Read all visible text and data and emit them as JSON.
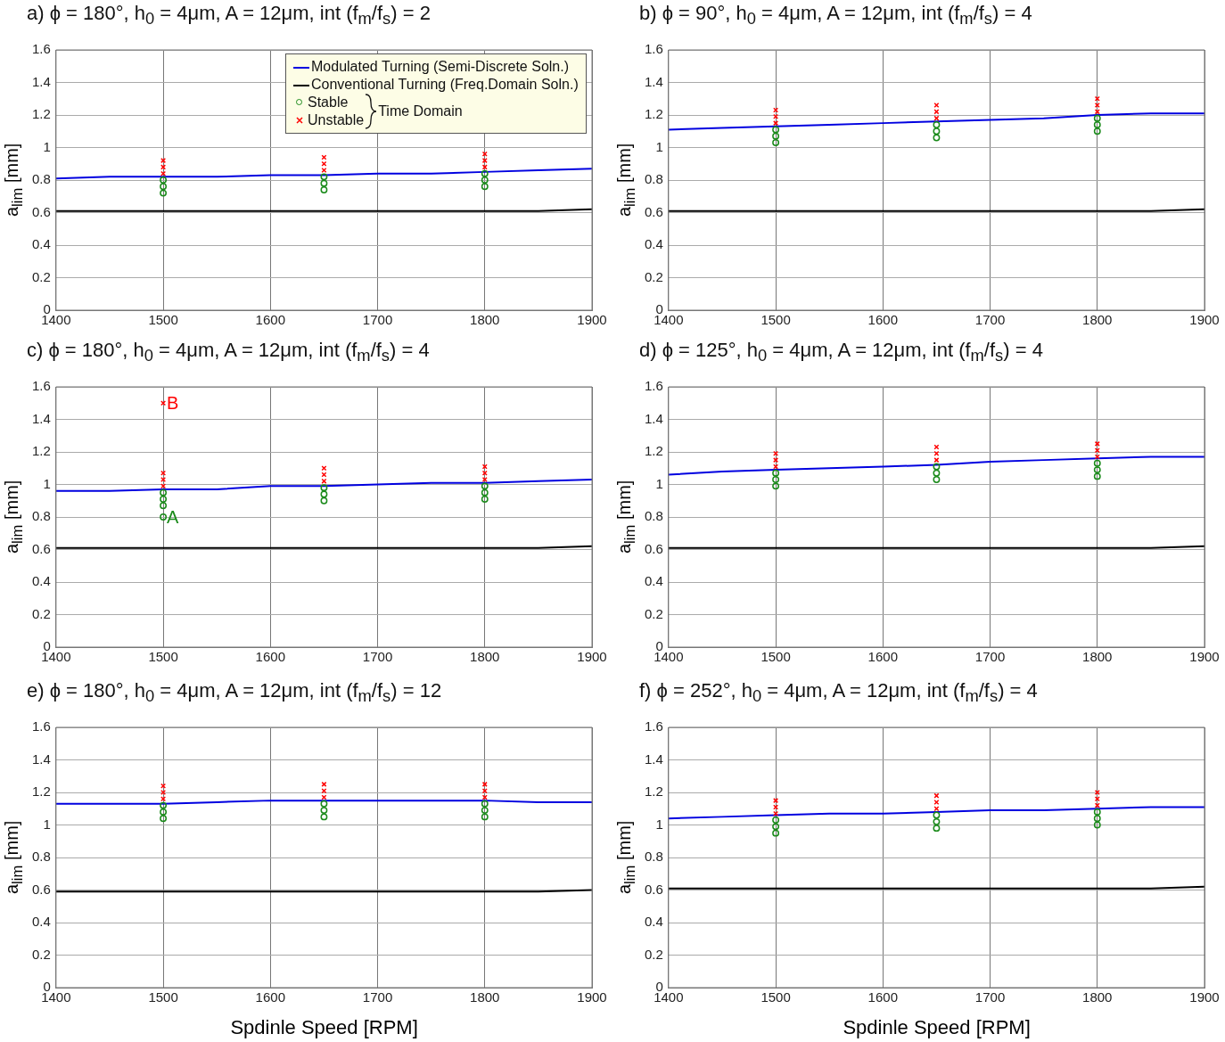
{
  "chart_data": [
    {
      "type": "line",
      "title": "a) ϕ = 180°, h$_{0}$ = 4μm, A = 12μm, int (f$_{m}$/f$_{s}$) = 2",
      "ylabel": "a$_{lim}$ [mm]",
      "xlim": [
        1400,
        1900
      ],
      "xticks": [
        1400,
        1500,
        1600,
        1700,
        1800,
        1900
      ],
      "ylim": [
        0,
        1.6
      ],
      "yticks": [
        0,
        0.2,
        0.4,
        0.6,
        0.8,
        1,
        1.2,
        1.4,
        1.6
      ],
      "grid": true,
      "legend": "top right",
      "legend_title": "Time Domain",
      "series": [
        {
          "name": "Modulated Turning (Semi-Discrete Soln.)",
          "marker": "none",
          "color": "#0000e0",
          "x": [
            1400,
            1450,
            1500,
            1550,
            1600,
            1650,
            1700,
            1750,
            1800,
            1850,
            1900
          ],
          "values": [
            0.81,
            0.82,
            0.82,
            0.82,
            0.83,
            0.83,
            0.84,
            0.84,
            0.85,
            0.86,
            0.87
          ]
        },
        {
          "name": "Conventional Turning (Freq.Domain Soln.)",
          "marker": "none",
          "color": "#000000",
          "x": [
            1400,
            1450,
            1500,
            1550,
            1600,
            1650,
            1700,
            1750,
            1800,
            1850,
            1900
          ],
          "values": [
            0.61,
            0.61,
            0.61,
            0.61,
            0.61,
            0.61,
            0.61,
            0.61,
            0.61,
            0.61,
            0.62
          ]
        },
        {
          "name": "Stable",
          "type": "scatter",
          "marker": "circle",
          "color": "#1a8a1a",
          "x": [
            1500,
            1500,
            1500,
            1650,
            1650,
            1650,
            1800,
            1800,
            1800
          ],
          "values": [
            0.72,
            0.76,
            0.8,
            0.74,
            0.78,
            0.82,
            0.76,
            0.8,
            0.84
          ]
        },
        {
          "name": "Unstable",
          "type": "scatter",
          "marker": "cross",
          "color": "#ff0000",
          "x": [
            1500,
            1500,
            1500,
            1650,
            1650,
            1650,
            1800,
            1800,
            1800
          ],
          "values": [
            0.84,
            0.88,
            0.92,
            0.86,
            0.9,
            0.94,
            0.88,
            0.92,
            0.96
          ]
        }
      ]
    },
    {
      "type": "line",
      "title": "b) ϕ = 90°, h$_{0}$ = 4μm, A = 12μm, int (f$_{m}$/f$_{s}$) = 4",
      "ylabel": "a$_{lim}$ [mm]",
      "xlim": [
        1400,
        1900
      ],
      "xticks": [
        1400,
        1500,
        1600,
        1700,
        1800,
        1900
      ],
      "ylim": [
        0,
        1.6
      ],
      "yticks": [
        0,
        0.2,
        0.4,
        0.6,
        0.8,
        1,
        1.2,
        1.4,
        1.6
      ],
      "grid": true,
      "series": [
        {
          "marker": "none",
          "color": "#0000e0",
          "x": [
            1400,
            1450,
            1500,
            1550,
            1600,
            1650,
            1700,
            1750,
            1800,
            1850,
            1900
          ],
          "values": [
            1.11,
            1.12,
            1.13,
            1.14,
            1.15,
            1.16,
            1.17,
            1.18,
            1.2,
            1.21,
            1.21
          ]
        },
        {
          "marker": "none",
          "color": "#000000",
          "x": [
            1400,
            1450,
            1500,
            1550,
            1600,
            1650,
            1700,
            1750,
            1800,
            1850,
            1900
          ],
          "values": [
            0.61,
            0.61,
            0.61,
            0.61,
            0.61,
            0.61,
            0.61,
            0.61,
            0.61,
            0.61,
            0.62
          ]
        },
        {
          "type": "scatter",
          "marker": "circle",
          "color": "#1a8a1a",
          "x": [
            1500,
            1500,
            1500,
            1650,
            1650,
            1650,
            1800,
            1800,
            1800
          ],
          "values": [
            1.03,
            1.07,
            1.11,
            1.06,
            1.1,
            1.14,
            1.1,
            1.14,
            1.18
          ]
        },
        {
          "type": "scatter",
          "marker": "cross",
          "color": "#ff0000",
          "x": [
            1500,
            1500,
            1500,
            1650,
            1650,
            1650,
            1800,
            1800,
            1800
          ],
          "values": [
            1.15,
            1.19,
            1.23,
            1.18,
            1.22,
            1.26,
            1.22,
            1.26,
            1.3
          ]
        }
      ]
    },
    {
      "type": "line",
      "title": "c) ϕ = 180°, h$_{0}$ = 4μm, A = 12μm, int (f$_{m}$/f$_{s}$) = 4",
      "ylabel": "a$_{lim}$ [mm]",
      "xlim": [
        1400,
        1900
      ],
      "xticks": [
        1400,
        1500,
        1600,
        1700,
        1800,
        1900
      ],
      "ylim": [
        0,
        1.6
      ],
      "yticks": [
        0,
        0.2,
        0.4,
        0.6,
        0.8,
        1,
        1.2,
        1.4,
        1.6
      ],
      "grid": true,
      "annotations": [
        {
          "text": "A",
          "x": 1500,
          "y": 0.8
        },
        {
          "text": "B",
          "x": 1500,
          "y": 1.5
        }
      ],
      "series": [
        {
          "marker": "none",
          "color": "#0000e0",
          "x": [
            1400,
            1450,
            1500,
            1550,
            1600,
            1650,
            1700,
            1750,
            1800,
            1850,
            1900
          ],
          "values": [
            0.96,
            0.96,
            0.97,
            0.97,
            0.99,
            0.99,
            1.0,
            1.01,
            1.01,
            1.02,
            1.03
          ]
        },
        {
          "marker": "none",
          "color": "#000000",
          "x": [
            1400,
            1450,
            1500,
            1550,
            1600,
            1650,
            1700,
            1750,
            1800,
            1850,
            1900
          ],
          "values": [
            0.61,
            0.61,
            0.61,
            0.61,
            0.61,
            0.61,
            0.61,
            0.61,
            0.61,
            0.61,
            0.62
          ]
        },
        {
          "type": "scatter",
          "marker": "circle",
          "color": "#1a8a1a",
          "x": [
            1500,
            1500,
            1500,
            1500,
            1650,
            1650,
            1650,
            1800,
            1800,
            1800
          ],
          "values": [
            0.8,
            0.87,
            0.91,
            0.95,
            0.9,
            0.94,
            0.98,
            0.91,
            0.95,
            0.99
          ]
        },
        {
          "type": "scatter",
          "marker": "cross",
          "color": "#ff0000",
          "x": [
            1500,
            1500,
            1500,
            1500,
            1650,
            1650,
            1650,
            1800,
            1800,
            1800
          ],
          "values": [
            0.99,
            1.03,
            1.07,
            1.5,
            1.02,
            1.06,
            1.1,
            1.03,
            1.07,
            1.11
          ]
        }
      ]
    },
    {
      "type": "line",
      "title": "d) ϕ = 125°, h$_{0}$ = 4μm, A = 12μm, int (f$_{m}$/f$_{s}$) = 4",
      "ylabel": "a$_{lim}$ [mm]",
      "xlim": [
        1400,
        1900
      ],
      "xticks": [
        1400,
        1500,
        1600,
        1700,
        1800,
        1900
      ],
      "ylim": [
        0,
        1.6
      ],
      "yticks": [
        0,
        0.2,
        0.4,
        0.6,
        0.8,
        1,
        1.2,
        1.4,
        1.6
      ],
      "grid": true,
      "series": [
        {
          "marker": "none",
          "color": "#0000e0",
          "x": [
            1400,
            1450,
            1500,
            1550,
            1600,
            1650,
            1700,
            1750,
            1800,
            1850,
            1900
          ],
          "values": [
            1.06,
            1.08,
            1.09,
            1.1,
            1.11,
            1.12,
            1.14,
            1.15,
            1.16,
            1.17,
            1.17
          ]
        },
        {
          "marker": "none",
          "color": "#000000",
          "x": [
            1400,
            1450,
            1500,
            1550,
            1600,
            1650,
            1700,
            1750,
            1800,
            1850,
            1900
          ],
          "values": [
            0.61,
            0.61,
            0.61,
            0.61,
            0.61,
            0.61,
            0.61,
            0.61,
            0.61,
            0.61,
            0.62
          ]
        },
        {
          "type": "scatter",
          "marker": "circle",
          "color": "#1a8a1a",
          "x": [
            1500,
            1500,
            1500,
            1650,
            1650,
            1650,
            1800,
            1800,
            1800
          ],
          "values": [
            0.99,
            1.03,
            1.07,
            1.03,
            1.07,
            1.11,
            1.05,
            1.09,
            1.13
          ]
        },
        {
          "type": "scatter",
          "marker": "cross",
          "color": "#ff0000",
          "x": [
            1500,
            1500,
            1500,
            1650,
            1650,
            1650,
            1800,
            1800,
            1800
          ],
          "values": [
            1.11,
            1.15,
            1.19,
            1.15,
            1.19,
            1.23,
            1.17,
            1.21,
            1.25
          ]
        }
      ]
    },
    {
      "type": "line",
      "title": "e) ϕ = 180°, h$_{0}$ = 4μm, A = 12μm, int (f$_{m}$/f$_{s}$) = 12",
      "ylabel": "a$_{lim}$ [mm]",
      "xlabel": "Spdinle Speed [RPM]",
      "xlim": [
        1400,
        1900
      ],
      "xticks": [
        1400,
        1500,
        1600,
        1700,
        1800,
        1900
      ],
      "ylim": [
        0,
        1.6
      ],
      "yticks": [
        0,
        0.2,
        0.4,
        0.6,
        0.8,
        1,
        1.2,
        1.4,
        1.6
      ],
      "grid": true,
      "series": [
        {
          "marker": "none",
          "color": "#0000e0",
          "x": [
            1400,
            1450,
            1500,
            1550,
            1600,
            1650,
            1700,
            1750,
            1800,
            1850,
            1900
          ],
          "values": [
            1.13,
            1.13,
            1.13,
            1.14,
            1.15,
            1.15,
            1.15,
            1.15,
            1.15,
            1.14,
            1.14
          ]
        },
        {
          "marker": "none",
          "color": "#000000",
          "x": [
            1400,
            1450,
            1500,
            1550,
            1600,
            1650,
            1700,
            1750,
            1800,
            1850,
            1900
          ],
          "values": [
            0.59,
            0.59,
            0.59,
            0.59,
            0.59,
            0.59,
            0.59,
            0.59,
            0.59,
            0.59,
            0.6
          ]
        },
        {
          "type": "scatter",
          "marker": "circle",
          "color": "#1a8a1a",
          "x": [
            1500,
            1500,
            1500,
            1650,
            1650,
            1650,
            1800,
            1800,
            1800
          ],
          "values": [
            1.04,
            1.08,
            1.12,
            1.05,
            1.09,
            1.13,
            1.05,
            1.09,
            1.13
          ]
        },
        {
          "type": "scatter",
          "marker": "cross",
          "color": "#ff0000",
          "x": [
            1500,
            1500,
            1500,
            1650,
            1650,
            1650,
            1800,
            1800,
            1800
          ],
          "values": [
            1.16,
            1.2,
            1.24,
            1.17,
            1.21,
            1.25,
            1.17,
            1.21,
            1.25
          ]
        }
      ]
    },
    {
      "type": "line",
      "title": "f)  ϕ = 252°, h$_{0}$ = 4μm, A = 12μm, int (f$_{m}$/f$_{s}$) = 4",
      "ylabel": "a$_{lim}$ [mm]",
      "xlabel": "Spdinle Speed [RPM]",
      "xlim": [
        1400,
        1900
      ],
      "xticks": [
        1400,
        1500,
        1600,
        1700,
        1800,
        1900
      ],
      "ylim": [
        0,
        1.6
      ],
      "yticks": [
        0,
        0.2,
        0.4,
        0.6,
        0.8,
        1,
        1.2,
        1.4,
        1.6
      ],
      "grid": true,
      "series": [
        {
          "marker": "none",
          "color": "#0000e0",
          "x": [
            1400,
            1450,
            1500,
            1550,
            1600,
            1650,
            1700,
            1750,
            1800,
            1850,
            1900
          ],
          "values": [
            1.04,
            1.05,
            1.06,
            1.07,
            1.07,
            1.08,
            1.09,
            1.09,
            1.1,
            1.11,
            1.11
          ]
        },
        {
          "marker": "none",
          "color": "#000000",
          "x": [
            1400,
            1450,
            1500,
            1550,
            1600,
            1650,
            1700,
            1750,
            1800,
            1850,
            1900
          ],
          "values": [
            0.61,
            0.61,
            0.61,
            0.61,
            0.61,
            0.61,
            0.61,
            0.61,
            0.61,
            0.61,
            0.62
          ]
        },
        {
          "type": "scatter",
          "marker": "circle",
          "color": "#1a8a1a",
          "x": [
            1500,
            1500,
            1500,
            1650,
            1650,
            1650,
            1800,
            1800,
            1800
          ],
          "values": [
            0.95,
            0.99,
            1.03,
            0.98,
            1.02,
            1.06,
            1.0,
            1.04,
            1.08
          ]
        },
        {
          "type": "scatter",
          "marker": "cross",
          "color": "#ff0000",
          "x": [
            1500,
            1500,
            1500,
            1650,
            1650,
            1650,
            1800,
            1800,
            1800
          ],
          "values": [
            1.07,
            1.11,
            1.15,
            1.1,
            1.14,
            1.18,
            1.12,
            1.16,
            1.2
          ]
        }
      ]
    }
  ]
}
